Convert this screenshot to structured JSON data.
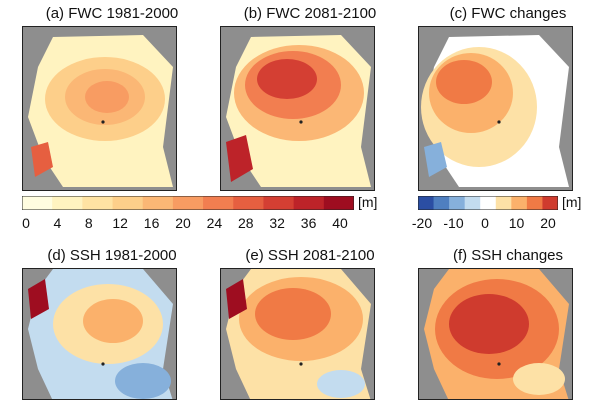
{
  "panels": [
    {
      "id": "a",
      "title": "(a) FWC 1981-2000"
    },
    {
      "id": "b",
      "title": "(b) FWC 2081-2100"
    },
    {
      "id": "c",
      "title": "(c) FWC changes"
    },
    {
      "id": "d",
      "title": "(d) SSH 1981-2000"
    },
    {
      "id": "e",
      "title": "(e) SSH 2081-2100"
    },
    {
      "id": "f",
      "title": "(f) SSH changes"
    }
  ],
  "colorbar_fwc": {
    "unit": "[m]",
    "ticks": [
      "0",
      "4",
      "8",
      "12",
      "16",
      "20",
      "24",
      "28",
      "32",
      "36",
      "40"
    ]
  },
  "colorbar_changes": {
    "unit": "[m]",
    "ticks": [
      "-20",
      "-10",
      "0",
      "10",
      "20"
    ]
  },
  "colors": {
    "land": "#8e8e8e",
    "fwc_scale": [
      "#fffde0",
      "#fff3c0",
      "#ffe3a3",
      "#fdcf8a",
      "#fbb775",
      "#f89c62",
      "#f27e50",
      "#e65f40",
      "#d43f33",
      "#bd2329",
      "#9e0d20"
    ],
    "diverging_scale": [
      "#2b4ea3",
      "#4f7fc0",
      "#86b0db",
      "#c3dcef",
      "#ffffff",
      "#fde1a6",
      "#fbb16b",
      "#f07a45",
      "#cf3b2e"
    ]
  }
}
